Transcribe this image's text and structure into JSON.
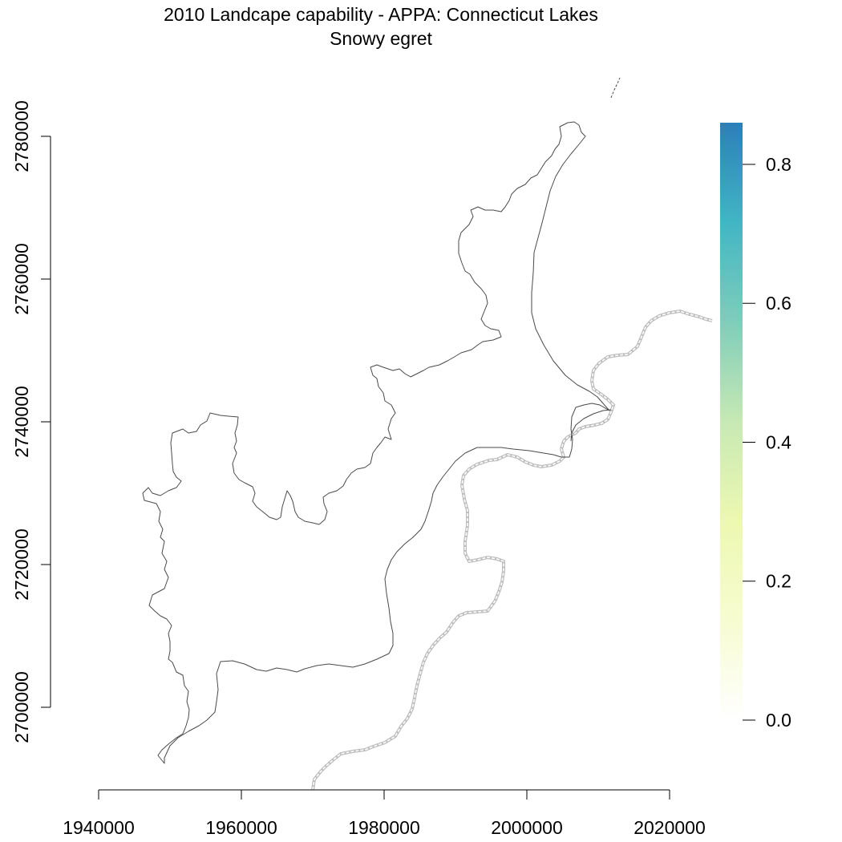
{
  "title": {
    "line1": "2010 Landcape capability - APPA: Connecticut Lakes",
    "line2": "Snowy egret"
  },
  "map": {
    "x_axis": {
      "ticks": [
        {
          "value": 1940000,
          "label": "1940000"
        },
        {
          "value": 1960000,
          "label": "1960000"
        },
        {
          "value": 1980000,
          "label": "1980000"
        },
        {
          "value": 2000000,
          "label": "2000000"
        },
        {
          "value": 2020000,
          "label": "2020000"
        }
      ],
      "range": [
        1940000,
        2020000
      ]
    },
    "y_axis": {
      "ticks": [
        {
          "value": 2700000,
          "label": "2700000"
        },
        {
          "value": 2720000,
          "label": "2720000"
        },
        {
          "value": 2740000,
          "label": "2740000"
        },
        {
          "value": 2760000,
          "label": "2760000"
        },
        {
          "value": 2780000,
          "label": "2780000"
        }
      ],
      "range": [
        2700000,
        2780000
      ]
    },
    "layers": [
      {
        "name": "APPA boundary",
        "style": "solid",
        "color": "#555555"
      },
      {
        "name": "State boundary",
        "style": "dashed",
        "color": "#b0b0b0"
      }
    ]
  },
  "legend": {
    "ticks": [
      {
        "value": 0.0,
        "label": "0.0"
      },
      {
        "value": 0.2,
        "label": "0.2"
      },
      {
        "value": 0.4,
        "label": "0.4"
      },
      {
        "value": 0.6,
        "label": "0.6"
      },
      {
        "value": 0.8,
        "label": "0.8"
      }
    ],
    "range": [
      0.0,
      0.86
    ],
    "colors": [
      "#ffffff",
      "#f7fcd0",
      "#edf8b1",
      "#c7e9b4",
      "#7fcdbb",
      "#41b6c4",
      "#2c7fb8"
    ]
  }
}
